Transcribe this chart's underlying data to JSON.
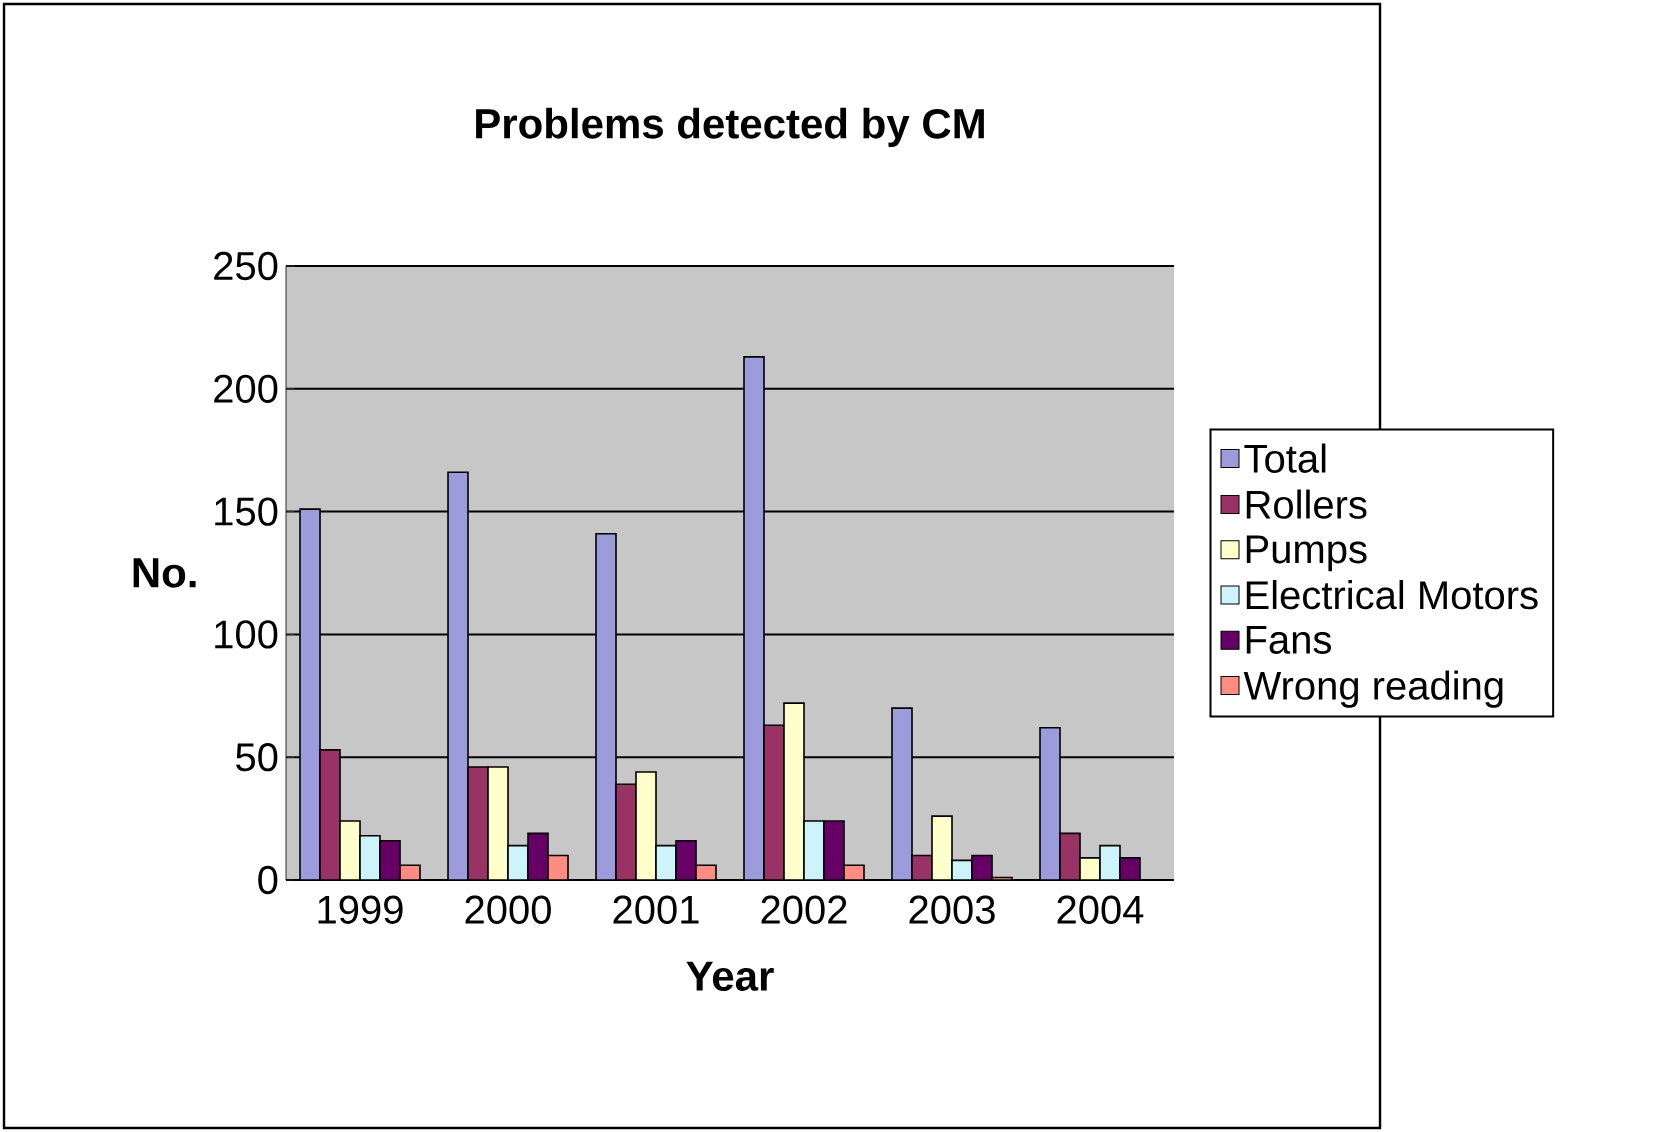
{
  "chart_data": {
    "type": "bar",
    "title": "Problems detected by CM",
    "xlabel": "Year",
    "ylabel": "No.",
    "categories": [
      "1999",
      "2000",
      "2001",
      "2002",
      "2003",
      "2004"
    ],
    "series": [
      {
        "name": "Total",
        "color": "#9c9cdc",
        "values": [
          151,
          166,
          141,
          213,
          70,
          62
        ]
      },
      {
        "name": "Rollers",
        "color": "#993366",
        "values": [
          53,
          46,
          39,
          63,
          10,
          19
        ]
      },
      {
        "name": "Pumps",
        "color": "#ffffcc",
        "values": [
          24,
          46,
          44,
          72,
          26,
          9
        ]
      },
      {
        "name": "Electrical Motors",
        "color": "#ccf4fa",
        "values": [
          18,
          14,
          14,
          24,
          8,
          14
        ]
      },
      {
        "name": "Fans",
        "color": "#660066",
        "values": [
          16,
          19,
          16,
          24,
          10,
          9
        ]
      },
      {
        "name": "Wrong reading",
        "color": "#ff8c80",
        "values": [
          6,
          10,
          6,
          6,
          1,
          null
        ]
      }
    ],
    "ylim": [
      0,
      250
    ],
    "yticks": [
      0,
      50,
      100,
      150,
      200,
      250
    ],
    "grid": "y",
    "legend": "right"
  }
}
